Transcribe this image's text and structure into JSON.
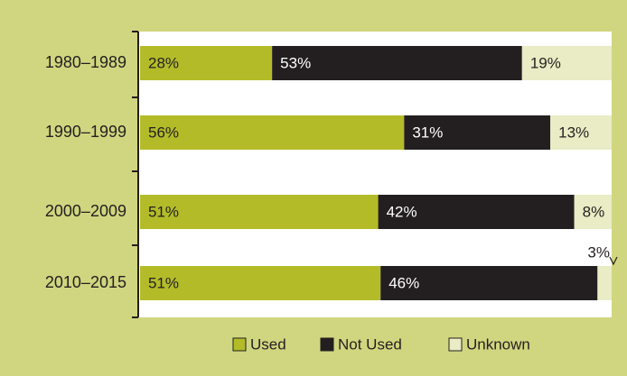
{
  "chart_data": {
    "type": "stacked-bar-horizontal",
    "categories": [
      "1980–1989",
      "1990–1999",
      "2000–2009",
      "2010–2015"
    ],
    "series": [
      {
        "name": "Used",
        "color": "#b3bc28",
        "values": [
          28,
          56,
          51,
          51
        ],
        "value_labels": [
          "28%",
          "56%",
          "51%",
          "51%"
        ]
      },
      {
        "name": "Not Used",
        "color": "#231f20",
        "values": [
          53,
          31,
          42,
          46
        ],
        "value_labels": [
          "53%",
          "31%",
          "42%",
          "46%"
        ]
      },
      {
        "name": "Unknown",
        "color": "#e9ecc4",
        "values": [
          19,
          13,
          8,
          3
        ],
        "value_labels": [
          "19%",
          "13%",
          "8%",
          "3%"
        ]
      }
    ]
  }
}
